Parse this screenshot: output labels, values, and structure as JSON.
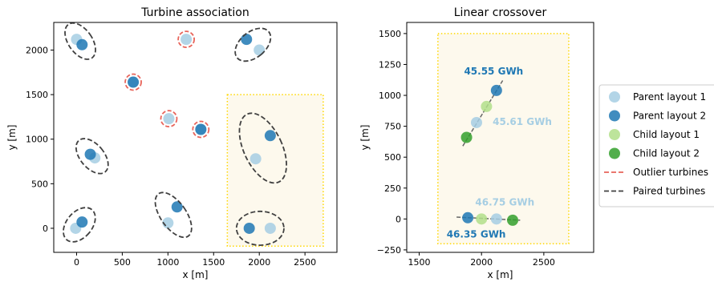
{
  "chart_data": [
    {
      "type": "scatter",
      "title": "Turbine association",
      "xlabel": "x [m]",
      "ylabel": "y [m]",
      "xlim": [
        -250,
        2850
      ],
      "ylim": [
        -270,
        2310
      ],
      "xticks": [
        0,
        500,
        1000,
        1500,
        2000,
        2500
      ],
      "yticks": [
        0,
        500,
        1000,
        1500,
        2000
      ],
      "series": [
        {
          "name": "Parent layout 1",
          "color": "#a6cee3",
          "points": [
            [
              0,
              2120
            ],
            [
              2000,
              2000
            ],
            [
              1200,
              2120
            ],
            [
              620,
              1640
            ],
            [
              1010,
              1230
            ],
            [
              1360,
              1110
            ],
            [
              200,
              790
            ],
            [
              1960,
              780
            ],
            [
              1000,
              60
            ],
            [
              -10,
              0
            ],
            [
              2120,
              0
            ]
          ]
        },
        {
          "name": "Parent layout 2",
          "color": "#1f78b4",
          "points": [
            [
              60,
              2060
            ],
            [
              1860,
              2120
            ],
            [
              620,
              1640
            ],
            [
              1360,
              1110
            ],
            [
              150,
              830
            ],
            [
              2120,
              1040
            ],
            [
              1100,
              240
            ],
            [
              60,
              70
            ],
            [
              1890,
              0
            ]
          ]
        }
      ],
      "outlier_circles": [
        [
          1200,
          2120
        ],
        [
          620,
          1640
        ],
        [
          1010,
          1230
        ],
        [
          1360,
          1110
        ]
      ],
      "paired_ellipses": [
        {
          "cx": 40,
          "cy": 2100,
          "rx": 130,
          "ry": 230,
          "angle": -35
        },
        {
          "cx": 1930,
          "cy": 2060,
          "rx": 140,
          "ry": 230,
          "angle": 50
        },
        {
          "cx": 170,
          "cy": 810,
          "rx": 130,
          "ry": 230,
          "angle": -40
        },
        {
          "cx": 2040,
          "cy": 900,
          "rx": 210,
          "ry": 420,
          "angle": -25
        },
        {
          "cx": 1060,
          "cy": 150,
          "rx": 140,
          "ry": 290,
          "angle": -35
        },
        {
          "cx": 30,
          "cy": 40,
          "rx": 140,
          "ry": 220,
          "angle": 40
        },
        {
          "cx": 2010,
          "cy": 0,
          "rx": 260,
          "ry": 190,
          "angle": 0
        }
      ],
      "crossover_region": {
        "x": [
          1650,
          2700
        ],
        "y": [
          -200,
          1500
        ]
      },
      "crossover_color": "#ffd700"
    },
    {
      "type": "scatter",
      "title": "Linear crossover",
      "xlabel": "x [m]",
      "ylabel": "y [m]",
      "xlim": [
        1400,
        2900
      ],
      "ylim": [
        -270,
        1590
      ],
      "xticks": [
        1500,
        2000,
        2500
      ],
      "yticks": [
        -250,
        0,
        250,
        500,
        750,
        1000,
        1250,
        1500
      ],
      "yticklabels": [
        "−250",
        "0",
        "250",
        "500",
        "750",
        "1000",
        "1250",
        "1500"
      ],
      "series": [
        {
          "name": "Parent layout 1",
          "color": "#a6cee3",
          "points": [
            [
              1960,
              780
            ],
            [
              2120,
              0
            ]
          ]
        },
        {
          "name": "Parent layout 2",
          "color": "#1f78b4",
          "points": [
            [
              2120,
              1040
            ],
            [
              1890,
              10
            ]
          ]
        },
        {
          "name": "Child layout 1",
          "color": "#b2df8a",
          "points": [
            [
              2040,
              910
            ],
            [
              2000,
              0
            ]
          ]
        },
        {
          "name": "Child layout 2",
          "color": "#33a02c",
          "points": [
            [
              1880,
              660
            ],
            [
              2250,
              -10
            ]
          ]
        }
      ],
      "crossover_lines": [
        {
          "from": [
            1850,
            590
          ],
          "to": [
            2170,
            1120
          ]
        },
        {
          "from": [
            1800,
            15
          ],
          "to": [
            2310,
            -10
          ]
        }
      ],
      "annotations": [
        {
          "text": "45.55 GWh",
          "x": 1860,
          "y": 1170,
          "color": "#1f78b4"
        },
        {
          "text": "45.61 GWh",
          "x": 2090,
          "y": 760,
          "color": "#a6cee3"
        },
        {
          "text": "46.75 GWh",
          "x": 1950,
          "y": 110,
          "color": "#a6cee3"
        },
        {
          "text": "46.35 GWh",
          "x": 1720,
          "y": -150,
          "color": "#1f78b4"
        }
      ],
      "crossover_region": {
        "x": [
          1650,
          2700
        ],
        "y": [
          -200,
          1500
        ]
      },
      "crossover_color": "#ffd700"
    }
  ],
  "legend": {
    "placement": "right",
    "items": [
      {
        "label": "Parent layout 1",
        "kind": "marker",
        "color": "#a6cee3"
      },
      {
        "label": "Parent layout 2",
        "kind": "marker",
        "color": "#1f78b4"
      },
      {
        "label": "Child layout 1",
        "kind": "marker",
        "color": "#b2df8a"
      },
      {
        "label": "Child layout 2",
        "kind": "marker",
        "color": "#33a02c"
      },
      {
        "label": "Outlier turbines",
        "kind": "dash",
        "color": "#e8645a"
      },
      {
        "label": "Paired turbines",
        "kind": "dash",
        "color": "#404040"
      }
    ]
  }
}
